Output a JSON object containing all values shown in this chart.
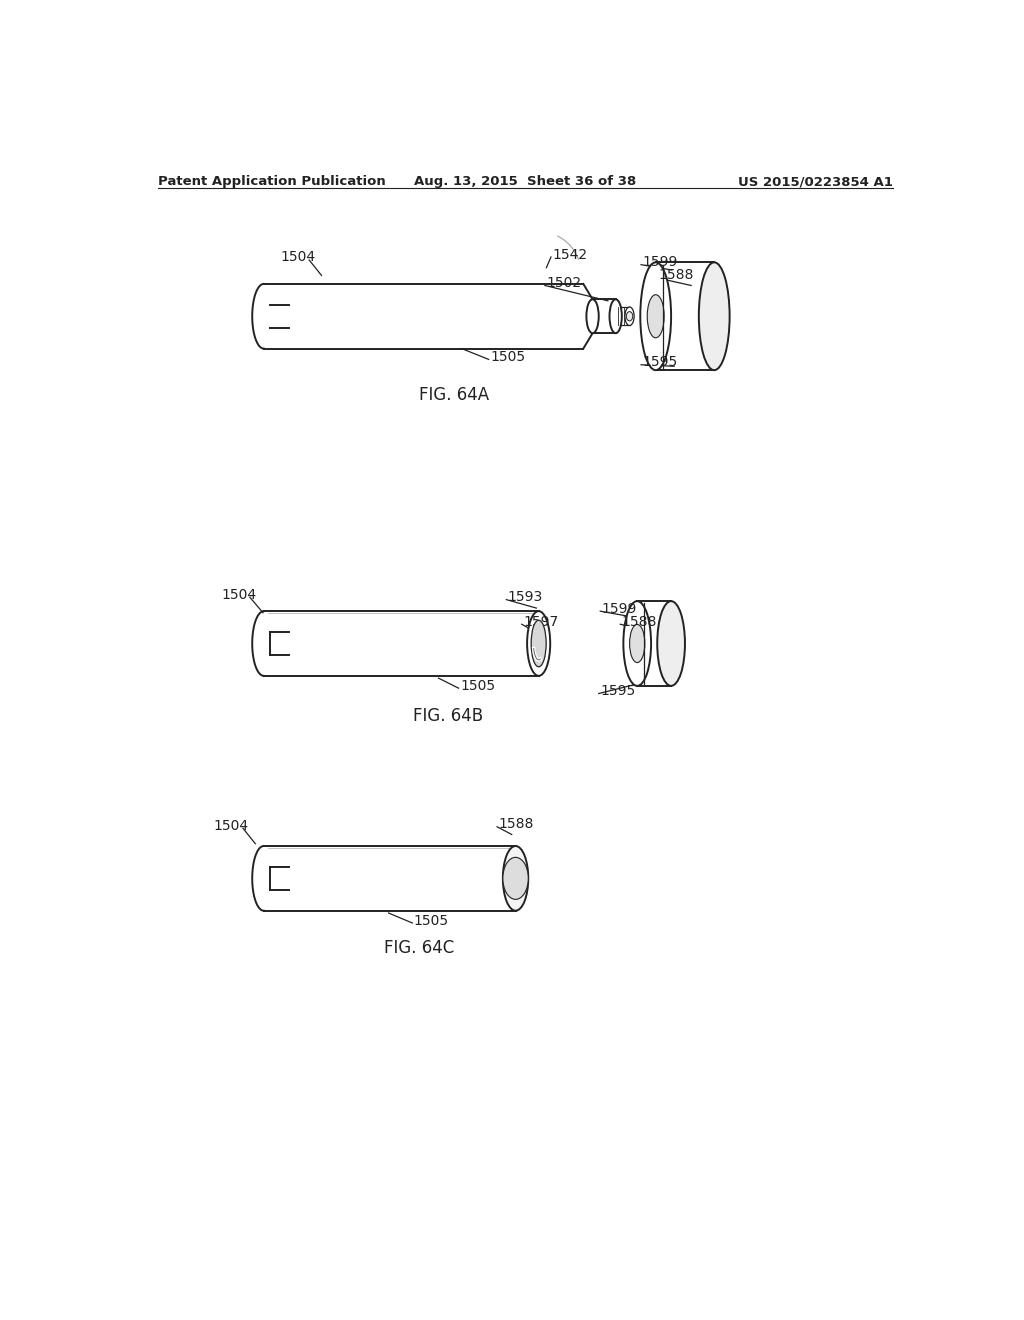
{
  "header_left": "Patent Application Publication",
  "header_mid": "Aug. 13, 2015  Sheet 36 of 38",
  "header_right": "US 2015/0223854 A1",
  "bg_color": "#ffffff",
  "line_color": "#222222"
}
